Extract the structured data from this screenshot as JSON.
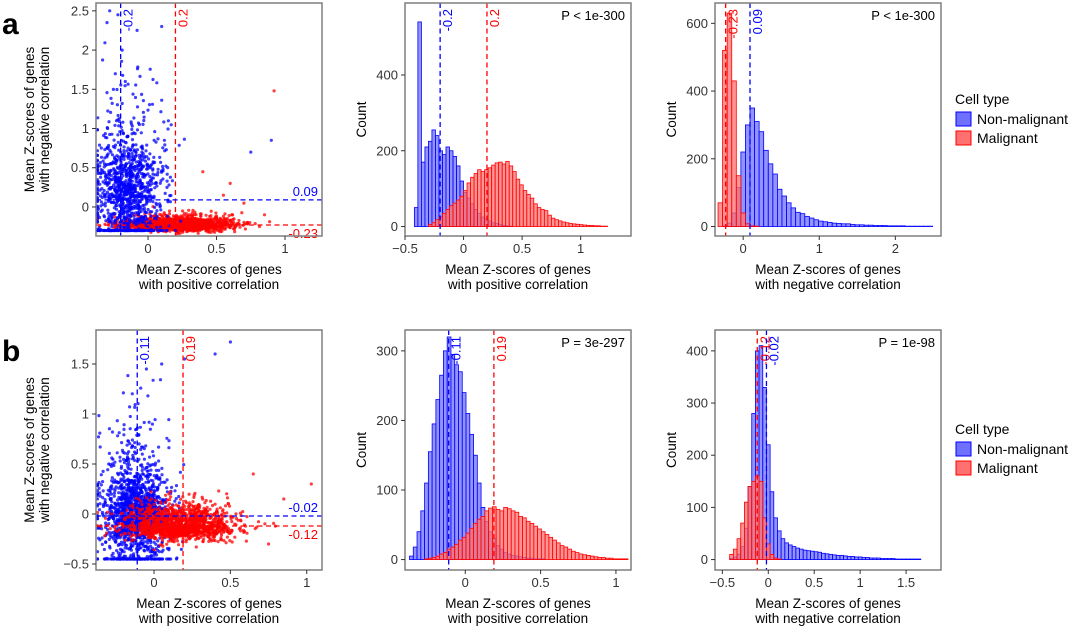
{
  "colors": {
    "non_malignant": "#0000ff",
    "malignant": "#ff0000",
    "non_malignant_fill": "#7070ff",
    "malignant_fill": "#ff7070",
    "frame": "#7f7f7f"
  },
  "rows": [
    {
      "letter": "a",
      "legend": {
        "title": "Cell type",
        "items": [
          "Non-malignant",
          "Malignant"
        ]
      }
    },
    {
      "letter": "b",
      "legend": {
        "title": "Cell type",
        "items": [
          "Non-malignant",
          "Malignant"
        ]
      }
    }
  ],
  "chart_data": [
    {
      "id": "a-scatter",
      "type": "scatter",
      "row": 0,
      "col": 0,
      "xlabel": [
        "Mean Z-scores of genes",
        "with positive correlation"
      ],
      "ylabel": [
        "Mean Z-scores of genes",
        "with negative correlation"
      ],
      "xlim": [
        -0.38,
        1.27
      ],
      "ylim": [
        -0.37,
        2.6
      ],
      "xticks": [
        0,
        0.5,
        1
      ],
      "xticklabels": [
        "0",
        "0.5",
        "1"
      ],
      "yticks": [
        0,
        0.5,
        1,
        1.5,
        2,
        2.5
      ],
      "yticklabels": [
        "0",
        "0.5",
        "1",
        "1.5",
        "2",
        "2.5"
      ],
      "ref_lines": [
        {
          "axis": "x",
          "value": -0.2,
          "label": "-0.2",
          "color": "#0000ff"
        },
        {
          "axis": "x",
          "value": 0.2,
          "label": "0.2",
          "color": "#ff0000"
        },
        {
          "axis": "y",
          "value": 0.09,
          "label": "0.09",
          "color": "#0000ff"
        },
        {
          "axis": "y",
          "value": -0.23,
          "label": "-0.23",
          "color": "#ff0000"
        }
      ],
      "clouds": [
        {
          "name": "Malignant",
          "color": "#ff0000",
          "n": 1300,
          "seed": 11,
          "xmean": 0.22,
          "xsd": 0.2,
          "xmin": -0.37,
          "xmax": 1.1,
          "ymean": -0.23,
          "ysd": 0.06,
          "ymin": -0.36,
          "ymax": 0.5,
          "outliers": [
            [
              0.55,
              0.15
            ],
            [
              0.7,
              0.05
            ],
            [
              0.85,
              -0.1
            ],
            [
              0.92,
              1.48
            ],
            [
              0.6,
              0.3
            ],
            [
              0.4,
              0.45
            ]
          ]
        },
        {
          "name": "Non-malignant",
          "color": "#0000ff",
          "n": 1100,
          "seed": 5,
          "xmean": -0.15,
          "xsd": 0.13,
          "xmin": -0.37,
          "xmax": 0.95,
          "ymean": 0.25,
          "ysd": 0.42,
          "ymin": -0.3,
          "ymax": 2.55,
          "outliers": [
            [
              -0.28,
              2.5
            ],
            [
              -0.22,
              2.45
            ],
            [
              -0.3,
              2.35
            ],
            [
              0.1,
              2.3
            ],
            [
              0.9,
              0.85
            ],
            [
              0.75,
              0.7
            ]
          ]
        }
      ]
    },
    {
      "id": "a-hist-pos",
      "type": "histogram",
      "row": 0,
      "col": 1,
      "xlabel": [
        "Mean Z-scores of genes",
        "with positive correlation"
      ],
      "ylabel": [
        "Count"
      ],
      "pvalue": "P < 1e-300",
      "xlim": [
        -0.5,
        1.43
      ],
      "ylim": [
        -25,
        590
      ],
      "xticks": [
        -0.5,
        0,
        0.5,
        1
      ],
      "xticklabels": [
        "−0.5",
        "0",
        "0.5",
        "1"
      ],
      "yticks": [
        0,
        200,
        400
      ],
      "yticklabels": [
        "0",
        "200",
        "400"
      ],
      "ref_lines": [
        {
          "axis": "x",
          "value": -0.2,
          "label": "-0.2",
          "color": "#0000ff"
        },
        {
          "axis": "x",
          "value": 0.2,
          "label": "0.2",
          "color": "#ff0000"
        }
      ],
      "series": [
        {
          "name": "Non-malignant",
          "bin_start": -0.42,
          "bin_width": 0.03,
          "values": [
            50,
            540,
            170,
            210,
            225,
            255,
            240,
            200,
            190,
            210,
            200,
            185,
            160,
            120,
            90,
            75,
            60,
            45,
            35,
            25,
            20,
            15,
            10,
            8,
            5,
            3,
            2,
            1,
            0,
            0,
            0,
            0,
            0,
            0,
            0,
            0,
            0,
            0,
            0,
            0,
            0,
            0,
            0,
            0,
            0,
            0,
            0,
            0,
            0,
            0,
            0,
            0,
            0,
            0,
            0,
            0
          ]
        },
        {
          "name": "Malignant",
          "bin_start": -0.42,
          "bin_width": 0.03,
          "values": [
            0,
            0,
            0,
            0,
            5,
            10,
            18,
            25,
            35,
            45,
            55,
            62,
            70,
            80,
            95,
            115,
            130,
            140,
            150,
            145,
            150,
            155,
            162,
            168,
            170,
            165,
            172,
            160,
            145,
            125,
            110,
            95,
            85,
            75,
            60,
            50,
            45,
            42,
            30,
            22,
            18,
            15,
            12,
            10,
            8,
            7,
            6,
            5,
            4,
            3,
            3,
            2,
            2,
            1,
            1,
            0
          ]
        }
      ]
    },
    {
      "id": "a-hist-neg",
      "type": "histogram",
      "row": 0,
      "col": 2,
      "xlabel": [
        "Mean Z-scores of genes",
        "with negative correlation"
      ],
      "ylabel": [
        "Count"
      ],
      "pvalue": "P < 1e-300",
      "xlim": [
        -0.37,
        2.6
      ],
      "ylim": [
        -28,
        660
      ],
      "xticks": [
        0,
        1,
        2
      ],
      "xticklabels": [
        "0",
        "1",
        "2"
      ],
      "yticks": [
        0,
        200,
        400,
        600
      ],
      "yticklabels": [
        "0",
        "200",
        "400",
        "600"
      ],
      "ref_lines": [
        {
          "axis": "x",
          "value": -0.23,
          "label": "-0.23",
          "color": "#ff0000"
        },
        {
          "axis": "x",
          "value": 0.09,
          "label": "0.09",
          "color": "#0000ff"
        }
      ],
      "series": [
        {
          "name": "Non-malignant",
          "bin_start": -0.33,
          "bin_width": 0.06,
          "values": [
            0,
            2,
            10,
            40,
            115,
            220,
            300,
            350,
            310,
            280,
            225,
            185,
            155,
            110,
            90,
            70,
            55,
            42,
            38,
            30,
            25,
            20,
            16,
            14,
            12,
            10,
            9,
            8,
            8,
            6,
            5,
            5,
            4,
            4,
            3,
            3,
            3,
            2,
            2,
            2,
            2,
            1,
            1,
            1,
            1,
            1,
            1,
            0,
            0
          ]
        },
        {
          "name": "Malignant",
          "bin_start": -0.33,
          "bin_width": 0.06,
          "values": [
            70,
            520,
            630,
            430,
            150,
            40,
            8,
            2,
            1,
            0,
            0,
            0,
            0,
            0,
            0,
            0,
            0,
            0,
            0,
            0,
            0,
            0,
            0,
            0,
            0,
            0,
            0,
            0,
            0,
            0,
            0,
            0,
            0,
            0,
            0,
            0,
            0,
            0,
            0,
            0,
            0,
            0,
            0,
            0,
            0,
            0,
            0,
            0,
            0
          ]
        }
      ]
    },
    {
      "id": "b-scatter",
      "type": "scatter",
      "row": 1,
      "col": 0,
      "xlabel": [
        "Mean Z-scores of genes",
        "with positive correlation"
      ],
      "ylabel": [
        "Mean Z-scores of genes",
        "with negative correlation"
      ],
      "xlim": [
        -0.38,
        1.1
      ],
      "ylim": [
        -0.56,
        1.84
      ],
      "xticks": [
        0,
        0.5,
        1
      ],
      "xticklabels": [
        "0",
        "0.5",
        "1"
      ],
      "yticks": [
        -0.5,
        0,
        0.5,
        1,
        1.5
      ],
      "yticklabels": [
        "−0.5",
        "0",
        "0.5",
        "1",
        "1.5"
      ],
      "ref_lines": [
        {
          "axis": "x",
          "value": -0.11,
          "label": "-0.11",
          "color": "#0000ff"
        },
        {
          "axis": "x",
          "value": 0.19,
          "label": "0.19",
          "color": "#ff0000"
        },
        {
          "axis": "y",
          "value": -0.02,
          "label": "-0.02",
          "color": "#0000ff"
        },
        {
          "axis": "y",
          "value": -0.12,
          "label": "-0.12",
          "color": "#ff0000"
        }
      ],
      "clouds": [
        {
          "name": "Non-malignant",
          "color": "#0000ff",
          "n": 1500,
          "seed": 23,
          "xmean": -0.12,
          "xsd": 0.11,
          "xmin": -0.37,
          "xmax": 0.8,
          "ymean": 0.0,
          "ysd": 0.28,
          "ymin": -0.45,
          "ymax": 1.75,
          "outliers": [
            [
              0.5,
              1.72
            ],
            [
              0.4,
              1.6
            ],
            [
              0.2,
              1.55
            ],
            [
              0.05,
              1.5
            ],
            [
              -0.05,
              1.45
            ]
          ]
        },
        {
          "name": "Malignant",
          "color": "#ff0000",
          "n": 1300,
          "seed": 37,
          "xmean": 0.18,
          "xsd": 0.18,
          "xmin": -0.37,
          "xmax": 1.05,
          "ymean": -0.12,
          "ysd": 0.12,
          "ymin": -0.5,
          "ymax": 0.6,
          "outliers": [
            [
              1.03,
              0.3
            ],
            [
              0.85,
              0.15
            ],
            [
              0.75,
              -0.3
            ],
            [
              0.65,
              0.4
            ]
          ]
        }
      ]
    },
    {
      "id": "b-hist-pos",
      "type": "histogram",
      "row": 1,
      "col": 1,
      "xlabel": [
        "Mean Z-scores of genes",
        "with positive correlation"
      ],
      "ylabel": [
        "Count"
      ],
      "pvalue": "P = 3e-297",
      "xlim": [
        -0.4,
        1.1
      ],
      "ylim": [
        -15,
        330
      ],
      "xticks": [
        0,
        0.5,
        1
      ],
      "xticklabels": [
        "0",
        "0.5",
        "1"
      ],
      "yticks": [
        0,
        100,
        200,
        300
      ],
      "yticklabels": [
        "0",
        "100",
        "200",
        "300"
      ],
      "ref_lines": [
        {
          "axis": "x",
          "value": -0.11,
          "label": "-0.11",
          "color": "#0000ff"
        },
        {
          "axis": "x",
          "value": 0.19,
          "label": "0.19",
          "color": "#ff0000"
        }
      ],
      "series": [
        {
          "name": "Non-malignant",
          "bin_start": -0.37,
          "bin_width": 0.025,
          "values": [
            5,
            18,
            40,
            70,
            110,
            155,
            195,
            230,
            265,
            300,
            320,
            295,
            280,
            270,
            240,
            210,
            180,
            150,
            110,
            75,
            55,
            40,
            30,
            20,
            15,
            10,
            8,
            6,
            5,
            4,
            3,
            2,
            2,
            1,
            1,
            1,
            0,
            0,
            0,
            0,
            0,
            0,
            0,
            0,
            0,
            0,
            0,
            0,
            0,
            0,
            0,
            0,
            0,
            0,
            0,
            0,
            0,
            0,
            0,
            0
          ]
        },
        {
          "name": "Malignant",
          "bin_start": -0.37,
          "bin_width": 0.025,
          "values": [
            0,
            0,
            0,
            0,
            1,
            2,
            3,
            5,
            8,
            10,
            15,
            18,
            22,
            28,
            32,
            38,
            45,
            52,
            58,
            62,
            70,
            74,
            76,
            72,
            70,
            75,
            73,
            70,
            68,
            62,
            60,
            55,
            52,
            48,
            44,
            40,
            36,
            32,
            28,
            24,
            20,
            18,
            15,
            12,
            10,
            8,
            7,
            6,
            5,
            4,
            3,
            3,
            2,
            2,
            1,
            1,
            1,
            1,
            0,
            0
          ]
        }
      ]
    },
    {
      "id": "b-hist-neg",
      "type": "histogram",
      "row": 1,
      "col": 2,
      "xlabel": [
        "Mean Z-scores of genes",
        "with negative correlation"
      ],
      "ylabel": [
        "Count"
      ],
      "pvalue": "P = 1e-98",
      "xlim": [
        -0.58,
        1.88
      ],
      "ylim": [
        -20,
        440
      ],
      "xticks": [
        -0.5,
        0,
        0.5,
        1,
        1.5
      ],
      "xticklabels": [
        "−0.5",
        "0",
        "0.5",
        "1",
        "1.5"
      ],
      "yticks": [
        0,
        100,
        200,
        300,
        400
      ],
      "yticklabels": [
        "0",
        "100",
        "200",
        "300",
        "400"
      ],
      "ref_lines": [
        {
          "axis": "x",
          "value": -0.12,
          "label": "-0.12",
          "color": "#ff0000"
        },
        {
          "axis": "x",
          "value": -0.02,
          "label": "-0.02",
          "color": "#0000ff"
        }
      ],
      "series": [
        {
          "name": "Non-malignant",
          "bin_start": -0.42,
          "bin_width": 0.04,
          "values": [
            2,
            5,
            10,
            25,
            60,
            140,
            280,
            400,
            410,
            330,
            220,
            130,
            80,
            55,
            40,
            32,
            28,
            25,
            22,
            20,
            18,
            17,
            16,
            15,
            14,
            12,
            11,
            10,
            9,
            8,
            8,
            7,
            6,
            6,
            5,
            5,
            4,
            4,
            3,
            3,
            3,
            2,
            2,
            2,
            2,
            1,
            1,
            1,
            1,
            1,
            1,
            1,
            0,
            0,
            0,
            0
          ]
        },
        {
          "name": "Malignant",
          "bin_start": -0.42,
          "bin_width": 0.04,
          "values": [
            10,
            20,
            40,
            70,
            110,
            140,
            150,
            160,
            150,
            80,
            30,
            10,
            3,
            1,
            0,
            0,
            0,
            0,
            0,
            0,
            0,
            0,
            0,
            0,
            0,
            0,
            0,
            0,
            0,
            0,
            0,
            0,
            0,
            0,
            0,
            0,
            0,
            0,
            0,
            0,
            0,
            0,
            0,
            0,
            0,
            0,
            0,
            0,
            0,
            0,
            0,
            0,
            0,
            0,
            0,
            0
          ]
        }
      ]
    }
  ]
}
